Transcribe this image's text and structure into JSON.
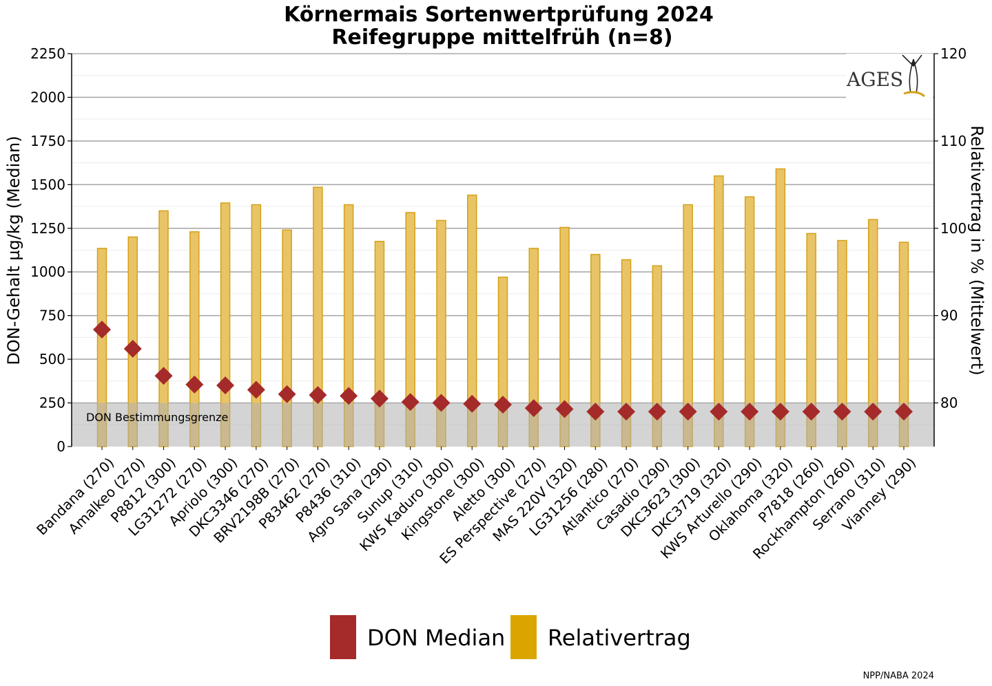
{
  "chart_data": {
    "type": "bar",
    "title": "Körnermais Sortenwertprüfung 2024",
    "subtitle": "Reifegruppe mittelfrüh (n=8)",
    "ylabel_left": "DON-Gehalt µg/kg (Median)",
    "ylabel_right": "Relativertrag in % (Mittelwert)",
    "ylim_left": [
      0,
      2250
    ],
    "ylim_right": [
      75,
      120
    ],
    "yticks_left": [
      "0",
      "250",
      "500",
      "750",
      "1000",
      "1250",
      "1500",
      "1750",
      "2000",
      "2250"
    ],
    "yticks_right": [
      "80",
      "90",
      "100",
      "110",
      "120"
    ],
    "grid": true,
    "legend_position": "bottom",
    "categories": [
      "Bandana (270)",
      "Amalkeo (270)",
      "P8812 (300)",
      "LG31272 (270)",
      "Apriolo (300)",
      "DKC3346 (270)",
      "BRV2198B (270)",
      "P83462 (270)",
      "P8436 (310)",
      "Agro Sana (290)",
      "Sunup (310)",
      "KWS Kaduro (300)",
      "Kingstone (300)",
      "Aletto (300)",
      "ES Perspective (270)",
      "MAS 220V (320)",
      "LG31256 (280)",
      "Atlantico (270)",
      "Casadio (290)",
      "DKC3623 (300)",
      "DKC3719 (320)",
      "KWS Arturello (290)",
      "Oklahoma (320)",
      "P7818 (260)",
      "Rockhampton (260)",
      "Serrano (310)",
      "Vianney (290)"
    ],
    "series": [
      {
        "name": "Relativertrag",
        "type": "bar",
        "axis": "right",
        "color": "#e8c466",
        "stroke": "#d4a017",
        "values": [
          97.7,
          99.0,
          102.0,
          99.6,
          102.9,
          102.7,
          99.8,
          104.7,
          102.7,
          98.5,
          101.8,
          100.9,
          103.8,
          94.4,
          97.7,
          100.1,
          97.0,
          96.4,
          95.7,
          102.7,
          106.0,
          103.6,
          106.8,
          99.4,
          98.6,
          101.0,
          98.4
        ]
      },
      {
        "name": "DON Median",
        "type": "scatter",
        "axis": "left",
        "color": "#a52a2a",
        "values": [
          670,
          560,
          405,
          355,
          350,
          325,
          300,
          295,
          290,
          275,
          255,
          250,
          245,
          240,
          220,
          215,
          200,
          200,
          200,
          200,
          200,
          200,
          200,
          200,
          200,
          200,
          200
        ]
      }
    ],
    "annotations": {
      "detection_limit_label": "DON Bestimmungsgrenze",
      "detection_limit_value": 250
    },
    "legend": [
      {
        "label": "DON Median",
        "color": "#a52a2a"
      },
      {
        "label": "Relativertrag",
        "color": "#dba500"
      }
    ],
    "logo_text": "AGES",
    "credit": "NPP/NABA 2024"
  }
}
